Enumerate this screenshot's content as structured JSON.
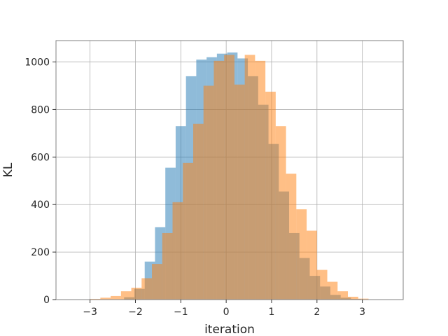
{
  "chart_data": {
    "type": "histogram",
    "xlabel": "iteration",
    "ylabel": "KL",
    "xlim": [
      -3.75,
      3.9
    ],
    "ylim": [
      0,
      1090
    ],
    "grid": true,
    "x_ticks": [
      -3,
      -2,
      -1,
      0,
      1,
      2,
      3
    ],
    "y_ticks": [
      0,
      200,
      400,
      600,
      800,
      1000
    ],
    "series": [
      {
        "color": "#1f77b4",
        "opacity": 0.5,
        "bin_start": -2.25,
        "bin_width": 0.22727,
        "values": [
          10,
          45,
          160,
          305,
          555,
          730,
          940,
          1010,
          1020,
          1035,
          1040,
          1015,
          940,
          820,
          655,
          455,
          280,
          175,
          100,
          55,
          20,
          8,
          3
        ]
      },
      {
        "color": "#ff7f0e",
        "opacity": 0.5,
        "bin_start": -3.0,
        "bin_width": 0.22727,
        "values": [
          3,
          8,
          15,
          35,
          50,
          90,
          150,
          280,
          410,
          575,
          740,
          900,
          1005,
          1030,
          905,
          1030,
          1005,
          875,
          730,
          530,
          380,
          290,
          125,
          75,
          35,
          12,
          4
        ]
      }
    ]
  }
}
